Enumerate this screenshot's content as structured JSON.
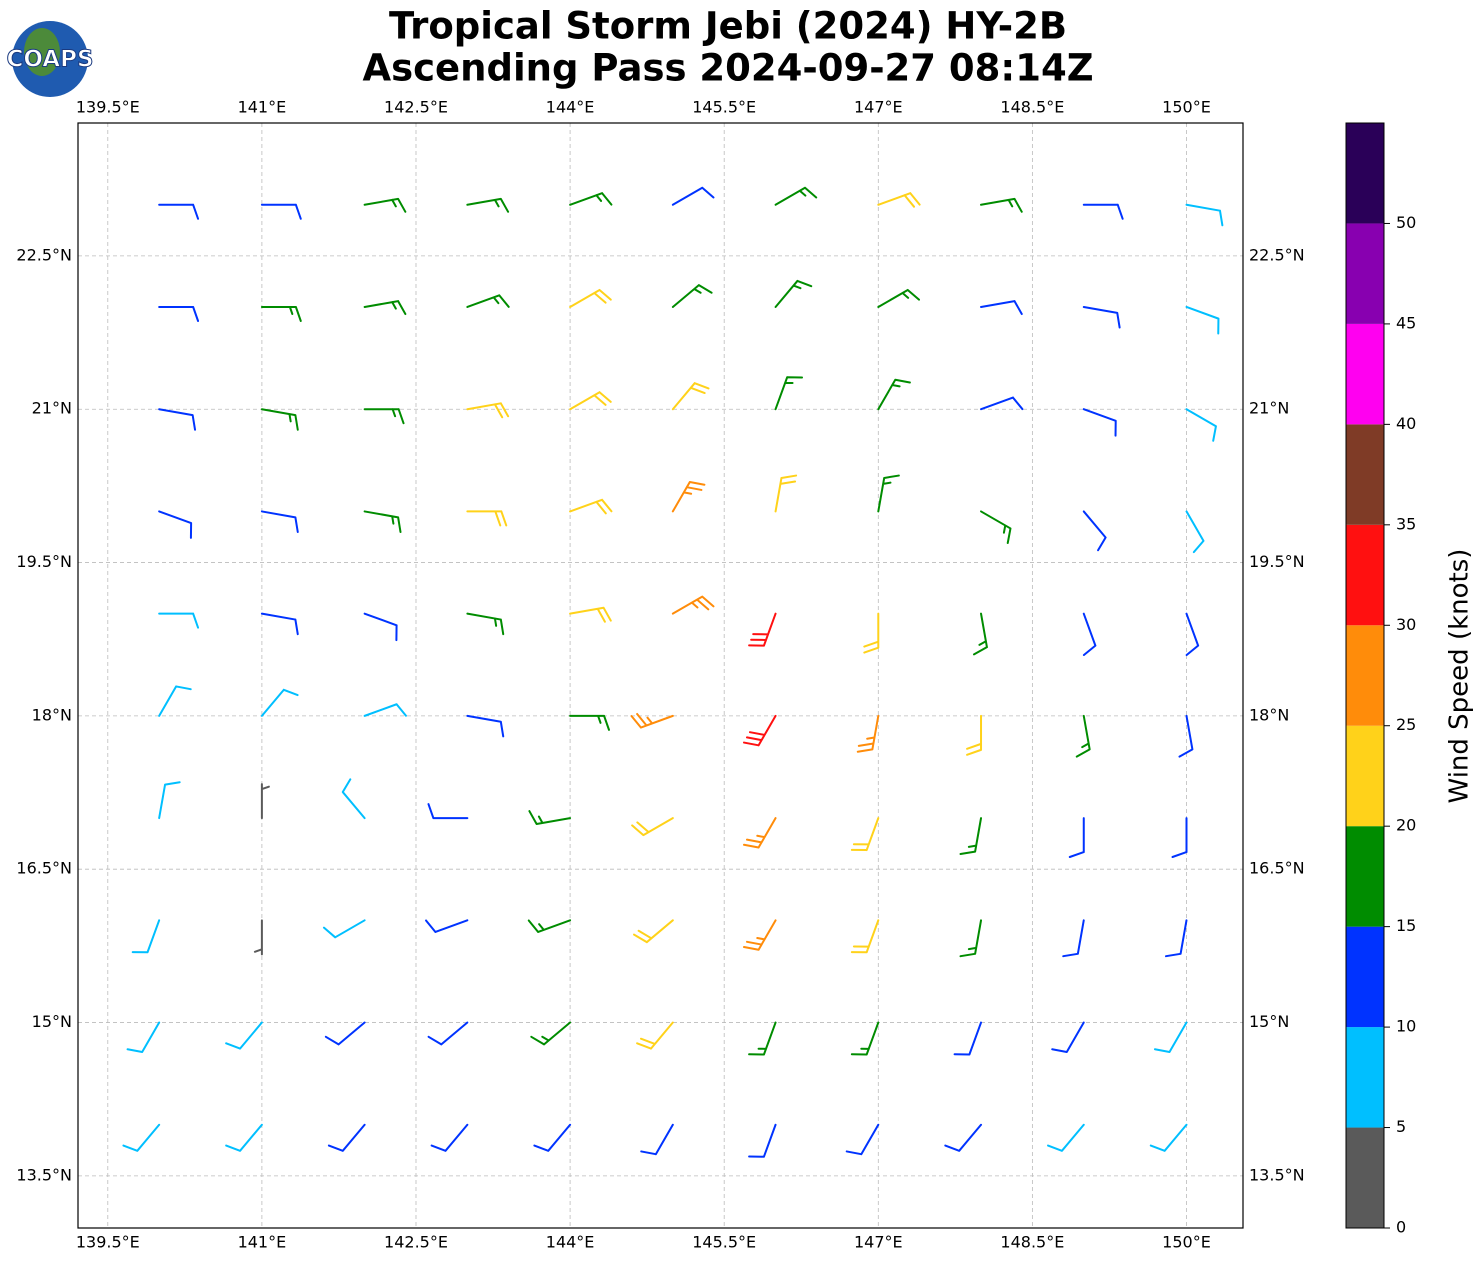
{
  "chart_data": {
    "type": "barbs",
    "title": "Tropical Storm Jebi (2024) HY-2B",
    "subtitle": "Ascending Pass 2024-09-27 08:14Z",
    "logo": "COAPS",
    "xlim": [
      139.21,
      150.55
    ],
    "ylim": [
      12.99,
      23.8
    ],
    "xticks": [
      {
        "value": 139.5,
        "label": "139.5°E"
      },
      {
        "value": 141,
        "label": "141°E"
      },
      {
        "value": 142.5,
        "label": "142.5°E"
      },
      {
        "value": 144,
        "label": "144°E"
      },
      {
        "value": 145.5,
        "label": "145.5°E"
      },
      {
        "value": 147,
        "label": "147°E"
      },
      {
        "value": 148.5,
        "label": "148.5°E"
      },
      {
        "value": 150,
        "label": "150°E"
      }
    ],
    "yticks": [
      {
        "value": 13.5,
        "label": "13.5°N"
      },
      {
        "value": 15,
        "label": "15°N"
      },
      {
        "value": 16.5,
        "label": "16.5°N"
      },
      {
        "value": 18,
        "label": "18°N"
      },
      {
        "value": 19.5,
        "label": "19.5°N"
      },
      {
        "value": 21,
        "label": "21°N"
      },
      {
        "value": 22.5,
        "label": "22.5°N"
      }
    ],
    "grid": true,
    "barbs": {
      "lon": [
        140,
        141,
        142,
        143,
        144,
        145,
        146,
        147,
        148,
        149,
        150
      ],
      "lat": [
        23,
        22,
        21,
        20,
        19,
        18,
        17,
        16,
        15,
        14
      ],
      "speed": [
        [
          12,
          12,
          17,
          17,
          17,
          12,
          17,
          22,
          17,
          12,
          8
        ],
        [
          12,
          17,
          17,
          17,
          22,
          17,
          17,
          17,
          12,
          12,
          8
        ],
        [
          12,
          17,
          17,
          22,
          22,
          22,
          17,
          17,
          12,
          12,
          8
        ],
        [
          12,
          12,
          17,
          22,
          22,
          27,
          22,
          17,
          17,
          12,
          8
        ],
        [
          8,
          12,
          12,
          17,
          22,
          27,
          32,
          22,
          17,
          12,
          12
        ],
        [
          8,
          8,
          8,
          12,
          17,
          27,
          32,
          27,
          22,
          17,
          12
        ],
        [
          8,
          3,
          8,
          12,
          17,
          22,
          27,
          22,
          17,
          12,
          12
        ],
        [
          8,
          3,
          8,
          12,
          17,
          22,
          27,
          22,
          17,
          12,
          12
        ],
        [
          8,
          8,
          12,
          12,
          17,
          22,
          17,
          17,
          12,
          12,
          8
        ],
        [
          8,
          8,
          12,
          12,
          12,
          12,
          12,
          12,
          12,
          8,
          8
        ]
      ],
      "direction": [
        [
          90,
          90,
          80,
          80,
          70,
          60,
          60,
          70,
          80,
          90,
          100
        ],
        [
          90,
          90,
          80,
          70,
          60,
          50,
          40,
          60,
          80,
          100,
          110
        ],
        [
          100,
          100,
          90,
          80,
          60,
          40,
          20,
          30,
          70,
          110,
          120
        ],
        [
          110,
          100,
          100,
          90,
          70,
          30,
          10,
          10,
          120,
          140,
          150
        ],
        [
          90,
          100,
          110,
          100,
          80,
          60,
          200,
          180,
          170,
          160,
          160
        ],
        [
          30,
          40,
          70,
          100,
          90,
          250,
          210,
          190,
          180,
          170,
          170
        ],
        [
          10,
          360,
          320,
          270,
          260,
          240,
          210,
          200,
          190,
          180,
          180
        ],
        [
          200,
          180,
          240,
          250,
          250,
          230,
          210,
          200,
          190,
          190,
          190
        ],
        [
          210,
          220,
          230,
          230,
          230,
          220,
          200,
          200,
          200,
          210,
          210
        ],
        [
          220,
          220,
          220,
          220,
          220,
          210,
          200,
          210,
          220,
          220,
          220
        ]
      ]
    },
    "colorbar": {
      "label": "Wind Speed (knots)",
      "bounds": [
        0,
        5,
        10,
        15,
        20,
        25,
        30,
        35,
        40,
        45,
        50,
        55
      ],
      "colors": [
        "#5a5a5a",
        "#00bfff",
        "#0033ff",
        "#008c00",
        "#ffd21a",
        "#ff8c0a",
        "#ff1010",
        "#7f3b26",
        "#ff00f0",
        "#8800b0",
        "#2a0058"
      ],
      "ticks": [
        0,
        5,
        10,
        15,
        20,
        25,
        30,
        35,
        40,
        45,
        50
      ]
    }
  }
}
